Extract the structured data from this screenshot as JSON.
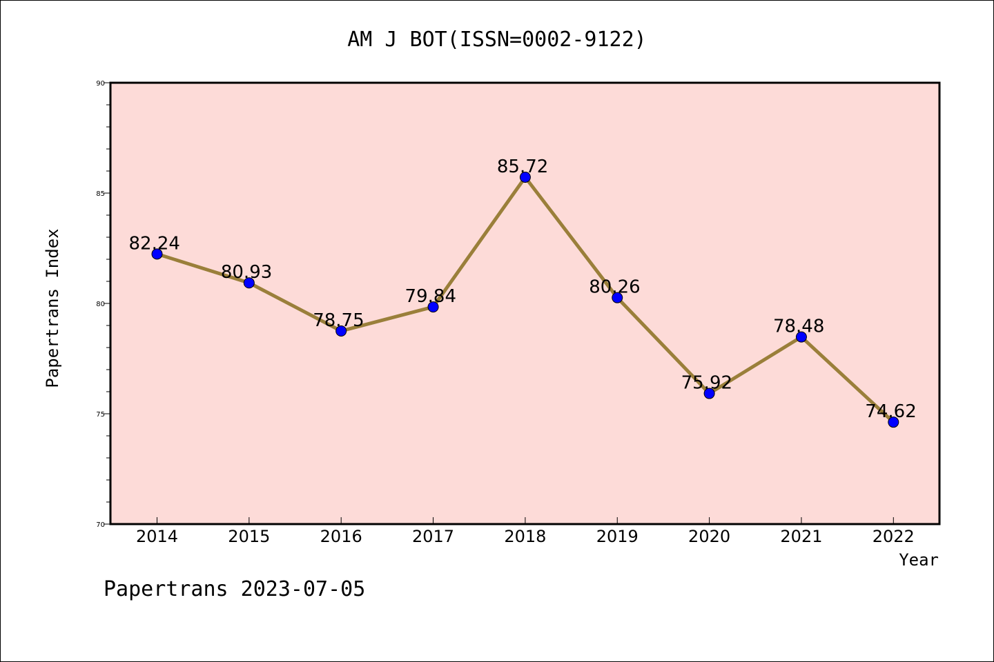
{
  "chart_data": {
    "type": "line",
    "title": "AM J BOT(ISSN=0002-9122)",
    "xlabel": "Year",
    "ylabel": "Papertrans Index",
    "categories": [
      "2014",
      "2015",
      "2016",
      "2017",
      "2018",
      "2019",
      "2020",
      "2021",
      "2022"
    ],
    "series": [
      {
        "values": [
          82.24,
          80.93,
          78.75,
          79.84,
          85.72,
          80.26,
          75.92,
          78.48,
          74.62
        ]
      }
    ],
    "data_labels": [
      "82.24",
      "80.93",
      "78.75",
      "79.84",
      "85.72",
      "80.26",
      "75.92",
      "78.48",
      "74.62"
    ],
    "ylim": [
      70,
      90
    ],
    "yticks": [
      70,
      75,
      80,
      85,
      90
    ],
    "grid": false,
    "legend": "none",
    "footer": "Papertrans 2023-07-05",
    "colors": {
      "plot_background": "#fddbd8",
      "line": "#9a7f3a",
      "marker": "#0000ff",
      "axes": "#000000"
    }
  }
}
